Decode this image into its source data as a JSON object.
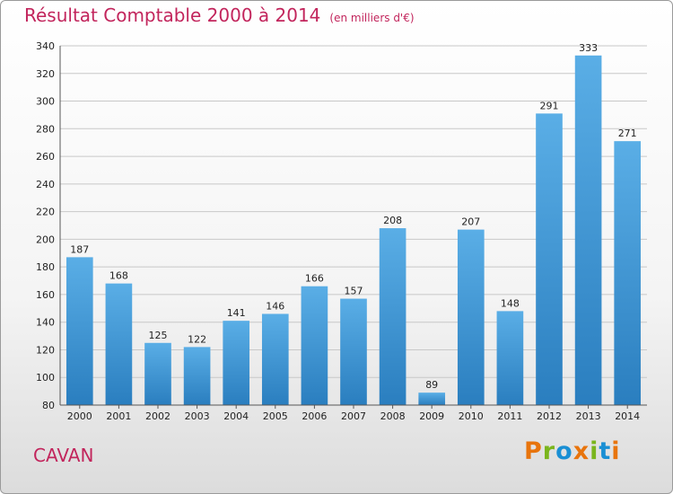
{
  "chart_data": {
    "type": "bar",
    "title": "Résultat Comptable 2000 à 2014",
    "subtitle": "(en milliers d'€)",
    "xlabel": "",
    "ylabel": "",
    "categories": [
      "2000",
      "2001",
      "2002",
      "2003",
      "2004",
      "2005",
      "2006",
      "2007",
      "2008",
      "2009",
      "2010",
      "2011",
      "2012",
      "2013",
      "2014"
    ],
    "values": [
      187,
      168,
      125,
      122,
      141,
      146,
      166,
      157,
      208,
      89,
      207,
      148,
      291,
      333,
      271
    ],
    "ylim": [
      80,
      340
    ],
    "yticks": [
      80,
      100,
      120,
      140,
      160,
      180,
      200,
      220,
      240,
      260,
      280,
      300,
      320,
      340
    ],
    "grid": true,
    "bar_color_top": "#5aaee6",
    "bar_color_bottom": "#2a7ebf"
  },
  "footer": {
    "city": "CAVAN",
    "brand": "Proxiti",
    "brand_colors": [
      "#e8740c",
      "#7ab51d",
      "#1a8fd4",
      "#e8740c",
      "#7ab51d",
      "#1a8fd4",
      "#e8740c"
    ]
  }
}
